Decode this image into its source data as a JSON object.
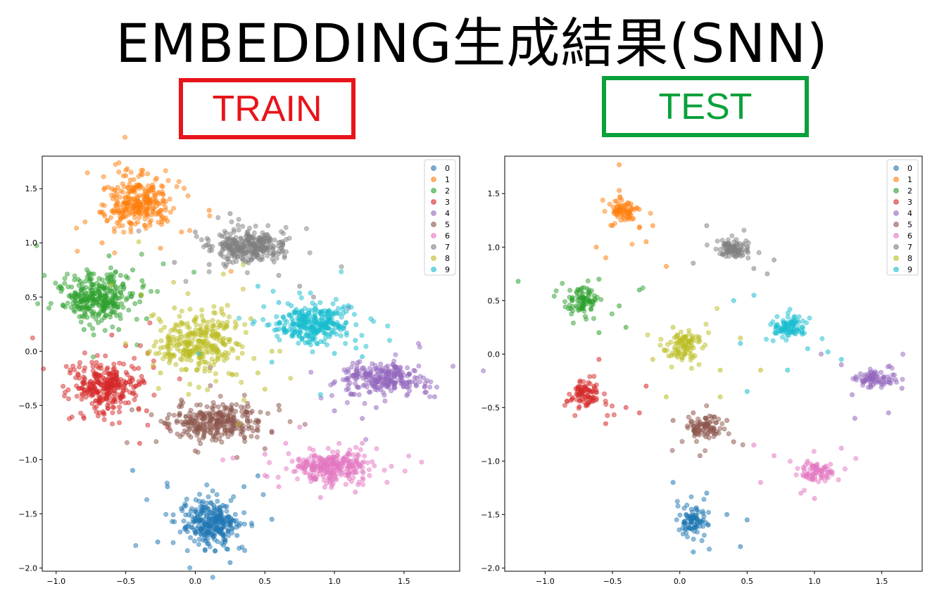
{
  "title": "EMBEDDING生成結果(SNN)",
  "train_label": "TRAIN",
  "test_label": "TEST",
  "colors": {
    "train_badge": "#e8141b",
    "test_badge": "#0aa13b",
    "classes": [
      "#1f77b4",
      "#ff7f0e",
      "#2ca02c",
      "#d62728",
      "#9467bd",
      "#8c564b",
      "#e377c2",
      "#7f7f7f",
      "#bcbd22",
      "#17becf"
    ]
  },
  "chart_data": [
    {
      "panel": "TRAIN",
      "type": "scatter",
      "title": "",
      "xlabel": "",
      "ylabel": "",
      "xlim": [
        -1.1,
        1.9
      ],
      "ylim": [
        -2.03,
        1.8
      ],
      "xticks": [
        -1.0,
        -0.5,
        0.0,
        0.5,
        1.0,
        1.5
      ],
      "yticks": [
        -2.0,
        -1.5,
        -1.0,
        -0.5,
        0.0,
        0.5,
        1.0,
        1.5
      ],
      "grid": false,
      "legend": "top-right",
      "series": [
        {
          "name": "0",
          "center": [
            0.12,
            -1.58
          ],
          "spread": [
            0.1,
            0.1
          ],
          "points": 300,
          "outliers": [
            [
              -0.45,
              -1.1
            ],
            [
              -0.27,
              -1.76
            ],
            [
              0.07,
              -1.83
            ],
            [
              0.35,
              -1.25
            ],
            [
              0.45,
              -1.15
            ],
            [
              -0.2,
              -1.25
            ],
            [
              0.3,
              -1.7
            ],
            [
              0.55,
              -1.55
            ],
            [
              -0.1,
              -1.45
            ],
            [
              0.25,
              -1.95
            ]
          ]
        },
        {
          "name": "1",
          "center": [
            -0.42,
            1.37
          ],
          "spread": [
            0.11,
            0.11
          ],
          "points": 300,
          "outliers": [
            [
              -0.5,
              1.62
            ],
            [
              -0.38,
              1.63
            ],
            [
              -0.67,
              1.0
            ],
            [
              -0.2,
              1.2
            ],
            [
              -0.1,
              1.1
            ],
            [
              0.1,
              1.3
            ],
            [
              -0.6,
              1.5
            ],
            [
              -0.25,
              0.95
            ]
          ]
        },
        {
          "name": "2",
          "center": [
            -0.7,
            0.5
          ],
          "spread": [
            0.12,
            0.11
          ],
          "points": 300,
          "outliers": [
            [
              -0.97,
              0.6
            ],
            [
              -0.95,
              0.42
            ],
            [
              -0.55,
              0.2
            ],
            [
              -0.45,
              0.75
            ],
            [
              -0.8,
              0.2
            ],
            [
              -0.35,
              0.3
            ],
            [
              -0.62,
              0.88
            ]
          ]
        },
        {
          "name": "3",
          "center": [
            -0.65,
            -0.33
          ],
          "spread": [
            0.12,
            0.11
          ],
          "points": 300,
          "outliers": [
            [
              -0.9,
              -0.2
            ],
            [
              -0.8,
              -0.62
            ],
            [
              -0.35,
              -0.55
            ],
            [
              -0.2,
              -0.7
            ],
            [
              -0.5,
              0.05
            ],
            [
              -0.3,
              -0.15
            ],
            [
              -0.4,
              -0.85
            ],
            [
              -0.6,
              0.15
            ]
          ]
        },
        {
          "name": "4",
          "center": [
            1.35,
            -0.25
          ],
          "spread": [
            0.14,
            0.07
          ],
          "points": 260,
          "outliers": [
            [
              1.1,
              -0.35
            ],
            [
              1.0,
              -0.55
            ],
            [
              1.2,
              -0.62
            ],
            [
              1.65,
              -0.38
            ],
            [
              1.72,
              -0.42
            ],
            [
              1.1,
              0.4
            ],
            [
              1.3,
              -0.52
            ]
          ]
        },
        {
          "name": "5",
          "center": [
            0.15,
            -0.66
          ],
          "spread": [
            0.16,
            0.08
          ],
          "points": 300,
          "outliers": [
            [
              -0.2,
              -0.62
            ],
            [
              0.55,
              -0.75
            ],
            [
              0.6,
              -0.5
            ],
            [
              0.0,
              -0.92
            ],
            [
              0.3,
              -0.98
            ],
            [
              -0.1,
              -0.45
            ],
            [
              0.5,
              -0.9
            ]
          ]
        },
        {
          "name": "6",
          "center": [
            0.98,
            -1.07
          ],
          "spread": [
            0.14,
            0.07
          ],
          "points": 280,
          "outliers": [
            [
              0.65,
              -0.85
            ],
            [
              0.6,
              -1.25
            ],
            [
              0.9,
              -1.35
            ],
            [
              1.2,
              -0.85
            ],
            [
              0.5,
              -0.95
            ],
            [
              0.75,
              -0.7
            ],
            [
              1.15,
              -1.3
            ]
          ]
        },
        {
          "name": "7",
          "center": [
            0.38,
            0.97
          ],
          "spread": [
            0.13,
            0.07
          ],
          "points": 300,
          "outliers": [
            [
              0.25,
              1.27
            ],
            [
              0.6,
              0.7
            ],
            [
              0.75,
              0.6
            ],
            [
              0.85,
              0.5
            ],
            [
              0.1,
              0.8
            ],
            [
              -0.15,
              0.82
            ],
            [
              0.0,
              1.1
            ]
          ]
        },
        {
          "name": "8",
          "center": [
            0.03,
            0.08
          ],
          "spread": [
            0.15,
            0.14
          ],
          "points": 320,
          "outliers": [
            [
              0.5,
              -0.35
            ],
            [
              0.55,
              0.0
            ],
            [
              -0.25,
              -0.2
            ],
            [
              0.4,
              0.3
            ],
            [
              0.35,
              -0.45
            ],
            [
              -0.15,
              0.4
            ],
            [
              0.45,
              -0.2
            ]
          ]
        },
        {
          "name": "9",
          "center": [
            0.85,
            0.25
          ],
          "spread": [
            0.12,
            0.08
          ],
          "points": 300,
          "outliers": [
            [
              1.1,
              0.42
            ],
            [
              1.0,
              -0.02
            ],
            [
              0.6,
              0.45
            ],
            [
              0.55,
              -0.1
            ],
            [
              0.45,
              0.6
            ],
            [
              0.9,
              -0.4
            ],
            [
              1.15,
              0.1
            ],
            [
              1.2,
              -0.05
            ]
          ]
        }
      ]
    },
    {
      "panel": "TEST",
      "type": "scatter",
      "title": "",
      "xlabel": "",
      "ylabel": "",
      "xlim": [
        -1.3,
        1.8
      ],
      "ylim": [
        -2.03,
        1.85
      ],
      "xticks": [
        -1.0,
        -0.5,
        0.0,
        0.5,
        1.0,
        1.5
      ],
      "yticks": [
        -2.0,
        -1.5,
        -1.0,
        -0.5,
        0.0,
        0.5,
        1.0,
        1.5
      ],
      "grid": false,
      "legend": "top-right",
      "series": [
        {
          "name": "0",
          "center": [
            0.1,
            -1.56
          ],
          "spread": [
            0.05,
            0.07
          ],
          "points": 90,
          "outliers": [
            [
              0.1,
              -1.85
            ],
            [
              0.35,
              -1.5
            ],
            [
              0.5,
              -1.55
            ],
            [
              0.2,
              -1.3
            ],
            [
              0.45,
              -1.8
            ],
            [
              -0.05,
              -1.2
            ]
          ]
        },
        {
          "name": "1",
          "center": [
            -0.42,
            1.35
          ],
          "spread": [
            0.05,
            0.05
          ],
          "points": 80,
          "outliers": [
            [
              -0.45,
              1.53
            ],
            [
              -0.45,
              1.77
            ],
            [
              -0.55,
              0.9
            ],
            [
              -0.5,
              1.2
            ],
            [
              -0.3,
              1.18
            ],
            [
              -0.2,
              1.2
            ],
            [
              -0.25,
              1.05
            ],
            [
              -0.1,
              0.82
            ],
            [
              -0.62,
              1.0
            ]
          ]
        },
        {
          "name": "2",
          "center": [
            -0.72,
            0.5
          ],
          "spread": [
            0.06,
            0.06
          ],
          "points": 90,
          "outliers": [
            [
              -1.2,
              0.68
            ],
            [
              -0.6,
              0.2
            ],
            [
              -0.45,
              0.45
            ],
            [
              -0.3,
              0.6
            ],
            [
              -0.6,
              0.7
            ],
            [
              -0.4,
              0.25
            ]
          ]
        },
        {
          "name": "3",
          "center": [
            -0.7,
            -0.37
          ],
          "spread": [
            0.05,
            0.06
          ],
          "points": 90,
          "outliers": [
            [
              -0.8,
              -0.42
            ],
            [
              -0.55,
              -0.65
            ],
            [
              -0.4,
              -0.5
            ],
            [
              -0.25,
              -0.3
            ],
            [
              -0.6,
              -0.05
            ],
            [
              -0.3,
              -0.55
            ]
          ]
        },
        {
          "name": "4",
          "center": [
            1.45,
            -0.23
          ],
          "spread": [
            0.07,
            0.04
          ],
          "points": 80,
          "outliers": [
            [
              1.2,
              -0.1
            ],
            [
              1.28,
              -0.38
            ],
            [
              1.55,
              -0.55
            ],
            [
              1.65,
              -0.32
            ],
            [
              1.05,
              0.0
            ],
            [
              1.3,
              -0.6
            ]
          ]
        },
        {
          "name": "5",
          "center": [
            0.18,
            -0.68
          ],
          "spread": [
            0.07,
            0.05
          ],
          "points": 90,
          "outliers": [
            [
              -0.05,
              -0.62
            ],
            [
              0.1,
              -0.55
            ],
            [
              0.35,
              -0.62
            ],
            [
              0.15,
              -0.95
            ],
            [
              0.4,
              -0.82
            ]
          ]
        },
        {
          "name": "6",
          "center": [
            1.02,
            -1.1
          ],
          "spread": [
            0.06,
            0.04
          ],
          "points": 80,
          "outliers": [
            [
              0.7,
              -0.95
            ],
            [
              0.6,
              -1.2
            ],
            [
              0.9,
              -1.3
            ],
            [
              0.55,
              -0.85
            ],
            [
              1.2,
              -0.88
            ],
            [
              1.0,
              -1.35
            ]
          ]
        },
        {
          "name": "7",
          "center": [
            0.4,
            0.98
          ],
          "spread": [
            0.05,
            0.04
          ],
          "points": 90,
          "outliers": [
            [
              0.2,
              1.2
            ],
            [
              0.55,
              0.8
            ],
            [
              0.65,
              0.75
            ],
            [
              0.1,
              0.85
            ],
            [
              0.7,
              0.88
            ]
          ]
        },
        {
          "name": "8",
          "center": [
            0.03,
            0.08
          ],
          "spread": [
            0.07,
            0.07
          ],
          "points": 100,
          "outliers": [
            [
              0.3,
              -0.15
            ],
            [
              -0.2,
              -0.05
            ],
            [
              0.45,
              0.15
            ],
            [
              -0.05,
              0.25
            ],
            [
              0.3,
              -0.4
            ],
            [
              -0.1,
              -0.4
            ],
            [
              0.6,
              -0.15
            ]
          ]
        },
        {
          "name": "9",
          "center": [
            0.82,
            0.25
          ],
          "spread": [
            0.06,
            0.05
          ],
          "points": 90,
          "outliers": [
            [
              0.95,
              0.05
            ],
            [
              1.1,
              0.02
            ],
            [
              0.55,
              0.55
            ],
            [
              0.45,
              0.1
            ],
            [
              0.5,
              -0.35
            ],
            [
              1.2,
              -0.05
            ],
            [
              0.4,
              0.5
            ],
            [
              0.8,
              -0.15
            ]
          ]
        }
      ]
    }
  ]
}
